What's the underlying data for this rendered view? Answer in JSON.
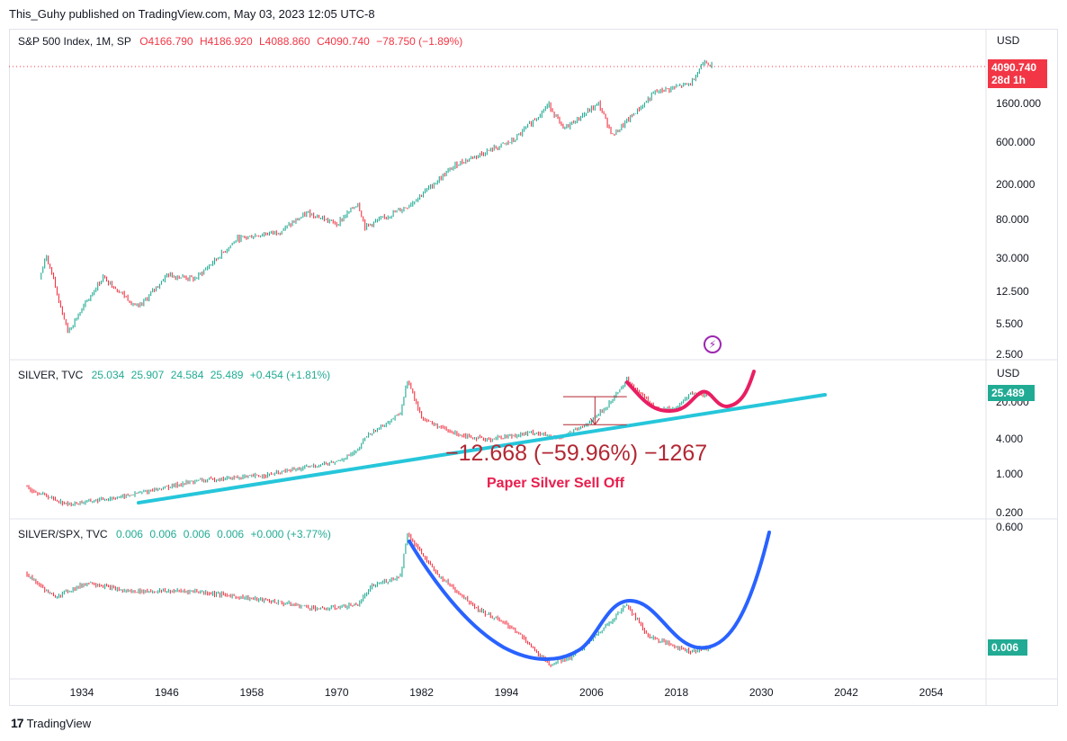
{
  "header": {
    "text": "This_Guhy published on TradingView.com, May 03, 2023 12:05 UTC-8"
  },
  "footer": {
    "logo": "17",
    "brand": "TradingView"
  },
  "colors": {
    "up": "#22ab94",
    "down": "#f23645",
    "trendline": "#26c6da",
    "blue_curve": "#2962ff",
    "red_curve": "#e91e63",
    "annotation": "#b22833"
  },
  "panes": {
    "spx": {
      "symbol": "S&P 500 Index, 1M, SP",
      "open": "O4166.790",
      "high": "H4186.920",
      "low": "L4088.860",
      "close": "C4090.740",
      "change": "−78.750 (−1.89%)",
      "currency": "USD",
      "last_price": "4090.740",
      "countdown": "28d 1h",
      "ticks": [
        "1600.000",
        "600.000",
        "200.000",
        "80.000",
        "30.000",
        "12.500",
        "5.500",
        "2.500"
      ]
    },
    "silver": {
      "symbol": "SILVER, TVC",
      "open": "25.034",
      "high": "25.907",
      "low": "24.584",
      "close": "25.489",
      "change": "+0.454 (+1.81%)",
      "currency": "USD",
      "last_price": "25.489",
      "ticks": [
        "20.000",
        "4.000",
        "1.000",
        "0.200"
      ],
      "measure": "−12.668 (−59.96%) −1267",
      "note": "Paper Silver Sell Off"
    },
    "ratio": {
      "symbol": "SILVER/SPX, TVC",
      "open": "0.006",
      "high": "0.006",
      "low": "0.006",
      "close": "0.006",
      "change": "+0.000 (+3.77%)",
      "last_price": "0.006",
      "ticks": [
        "0.600"
      ]
    }
  },
  "chart_data": [
    {
      "type": "line",
      "title": "S&P 500 Index, 1M, SP",
      "x": [
        1928,
        1929,
        1932,
        1937,
        1942,
        1946,
        1950,
        1956,
        1962,
        1966,
        1970,
        1973,
        1974,
        1980,
        1987,
        1995,
        2000,
        2002,
        2007,
        2009,
        2015,
        2020,
        2022,
        2023
      ],
      "values": [
        17,
        31,
        4.4,
        18,
        8,
        19,
        17,
        48,
        58,
        94,
        70,
        120,
        65,
        110,
        330,
        600,
        1520,
        800,
        1550,
        680,
        2080,
        2600,
        4800,
        4090
      ],
      "yscale": "log",
      "ylim": [
        2.5,
        5000
      ],
      "xlim": [
        1926,
        2064
      ],
      "last_value": 4090.74
    },
    {
      "type": "line",
      "title": "SILVER, TVC",
      "x": [
        1926,
        1932,
        1940,
        1950,
        1960,
        1966,
        1970,
        1973,
        1974,
        1979,
        1980,
        1982,
        1986,
        1991,
        1998,
        2001,
        2005,
        2008,
        2011,
        2015,
        2018,
        2020,
        2023
      ],
      "values": [
        0.55,
        0.27,
        0.38,
        0.72,
        0.91,
        1.29,
        1.6,
        2.5,
        4.4,
        12,
        48,
        10,
        5.5,
        4,
        5.5,
        4.2,
        7,
        15,
        48,
        15,
        14.5,
        28,
        25.49
      ],
      "yscale": "log",
      "ylim": [
        0.2,
        80
      ],
      "xlim": [
        1926,
        2064
      ],
      "last_value": 25.489,
      "trendline": {
        "x": [
          1942,
          2039
        ],
        "y": [
          0.29,
          26
        ]
      },
      "measure_box": {
        "x": [
          2002,
          2011
        ],
        "y_top": 24,
        "y_bottom": 7.5
      }
    },
    {
      "type": "line",
      "title": "SILVER/SPX, TVC",
      "x": [
        1926,
        1930,
        1935,
        1940,
        1950,
        1960,
        1968,
        1973,
        1975,
        1979,
        1980,
        1984,
        1990,
        1995,
        2000,
        2003,
        2007,
        2011,
        2014,
        2018,
        2020,
        2023
      ],
      "values": [
        0.1,
        0.04,
        0.07,
        0.05,
        0.05,
        0.035,
        0.025,
        0.03,
        0.06,
        0.09,
        0.45,
        0.1,
        0.025,
        0.012,
        0.003,
        0.004,
        0.01,
        0.03,
        0.009,
        0.006,
        0.005,
        0.006
      ],
      "yscale": "log",
      "ylim": [
        0.002,
        0.6
      ],
      "xlim": [
        1926,
        2064
      ],
      "last_value": 0.006
    }
  ],
  "xaxis": {
    "ticks": [
      "1934",
      "1946",
      "1958",
      "1970",
      "1982",
      "1994",
      "2006",
      "2018",
      "2030",
      "2042",
      "2054"
    ]
  }
}
